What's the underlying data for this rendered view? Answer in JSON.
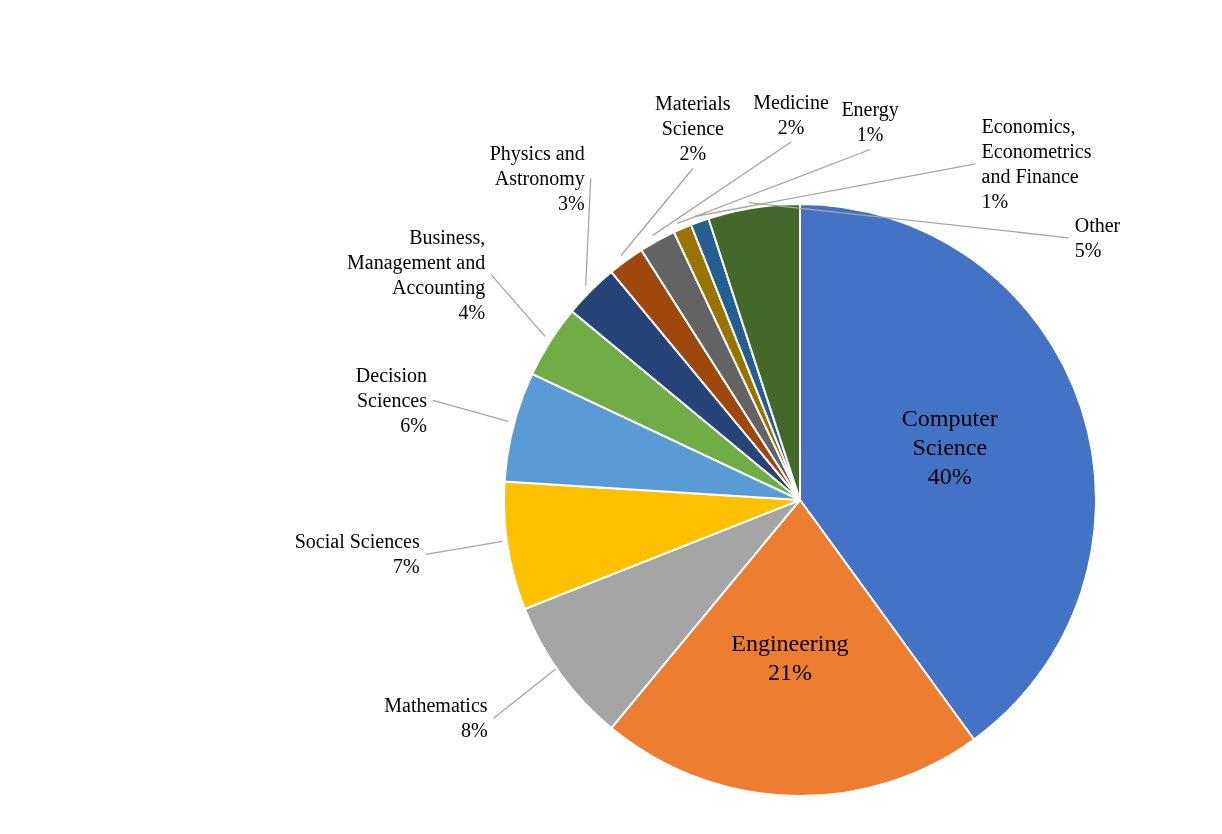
{
  "chart_data": {
    "type": "pie",
    "categories": [
      "Computer Science",
      "Engineering",
      "Mathematics",
      "Social Sciences",
      "Decision Sciences",
      "Business, Management and Accounting",
      "Physics and Astronomy",
      "Materials Science",
      "Medicine",
      "Energy",
      "Economics, Econometrics and Finance",
      "Other"
    ],
    "values": [
      40,
      21,
      8,
      7,
      6,
      4,
      3,
      2,
      2,
      1,
      1,
      5
    ],
    "value_labels": [
      "40%",
      "21%",
      "8%",
      "7%",
      "6%",
      "4%",
      "3%",
      "2%",
      "2%",
      "1%",
      "1%",
      "5%"
    ],
    "colors": [
      "#4472c4",
      "#ed7d31",
      "#a5a5a5",
      "#ffc000",
      "#5b9bd5",
      "#70ad47",
      "#264478",
      "#9e480e",
      "#636363",
      "#997300",
      "#255e91",
      "#43682b"
    ]
  }
}
